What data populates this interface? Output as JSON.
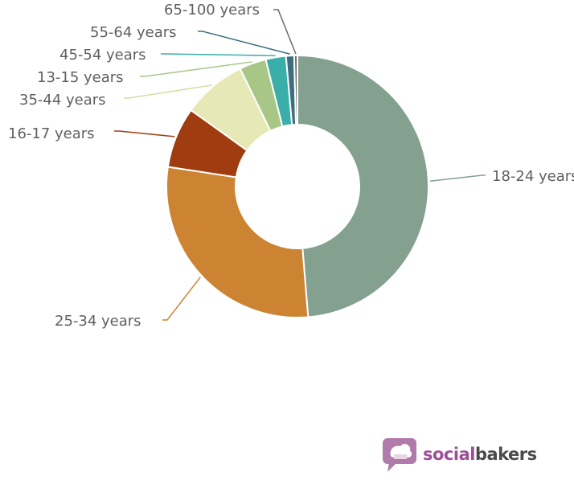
{
  "chart_data": {
    "type": "pie",
    "variant": "donut",
    "title": "",
    "slices": [
      {
        "label": "18-24 years",
        "value": 48.7,
        "color": "#84a08f"
      },
      {
        "label": "25-34 years",
        "value": 28.7,
        "color": "#cc8433"
      },
      {
        "label": "16-17 years",
        "value": 7.5,
        "color": "#9f3d10"
      },
      {
        "label": "35-44 years",
        "value": 7.9,
        "color": "#e6e8b6"
      },
      {
        "label": "13-15 years",
        "value": 3.3,
        "color": "#a8c686"
      },
      {
        "label": "45-54 years",
        "value": 2.5,
        "color": "#3aaea8"
      },
      {
        "label": "55-64 years",
        "value": 1.0,
        "color": "#3c6e7e"
      },
      {
        "label": "65-100 years",
        "value": 0.4,
        "color": "#6a6a6a"
      }
    ],
    "legend": "none"
  },
  "brand": {
    "name_part1": "social",
    "name_part2": "bakers",
    "icon": "chat-cake-icon",
    "colors": {
      "primary": "#9c4f96",
      "secondary": "#4a4a4a"
    }
  }
}
